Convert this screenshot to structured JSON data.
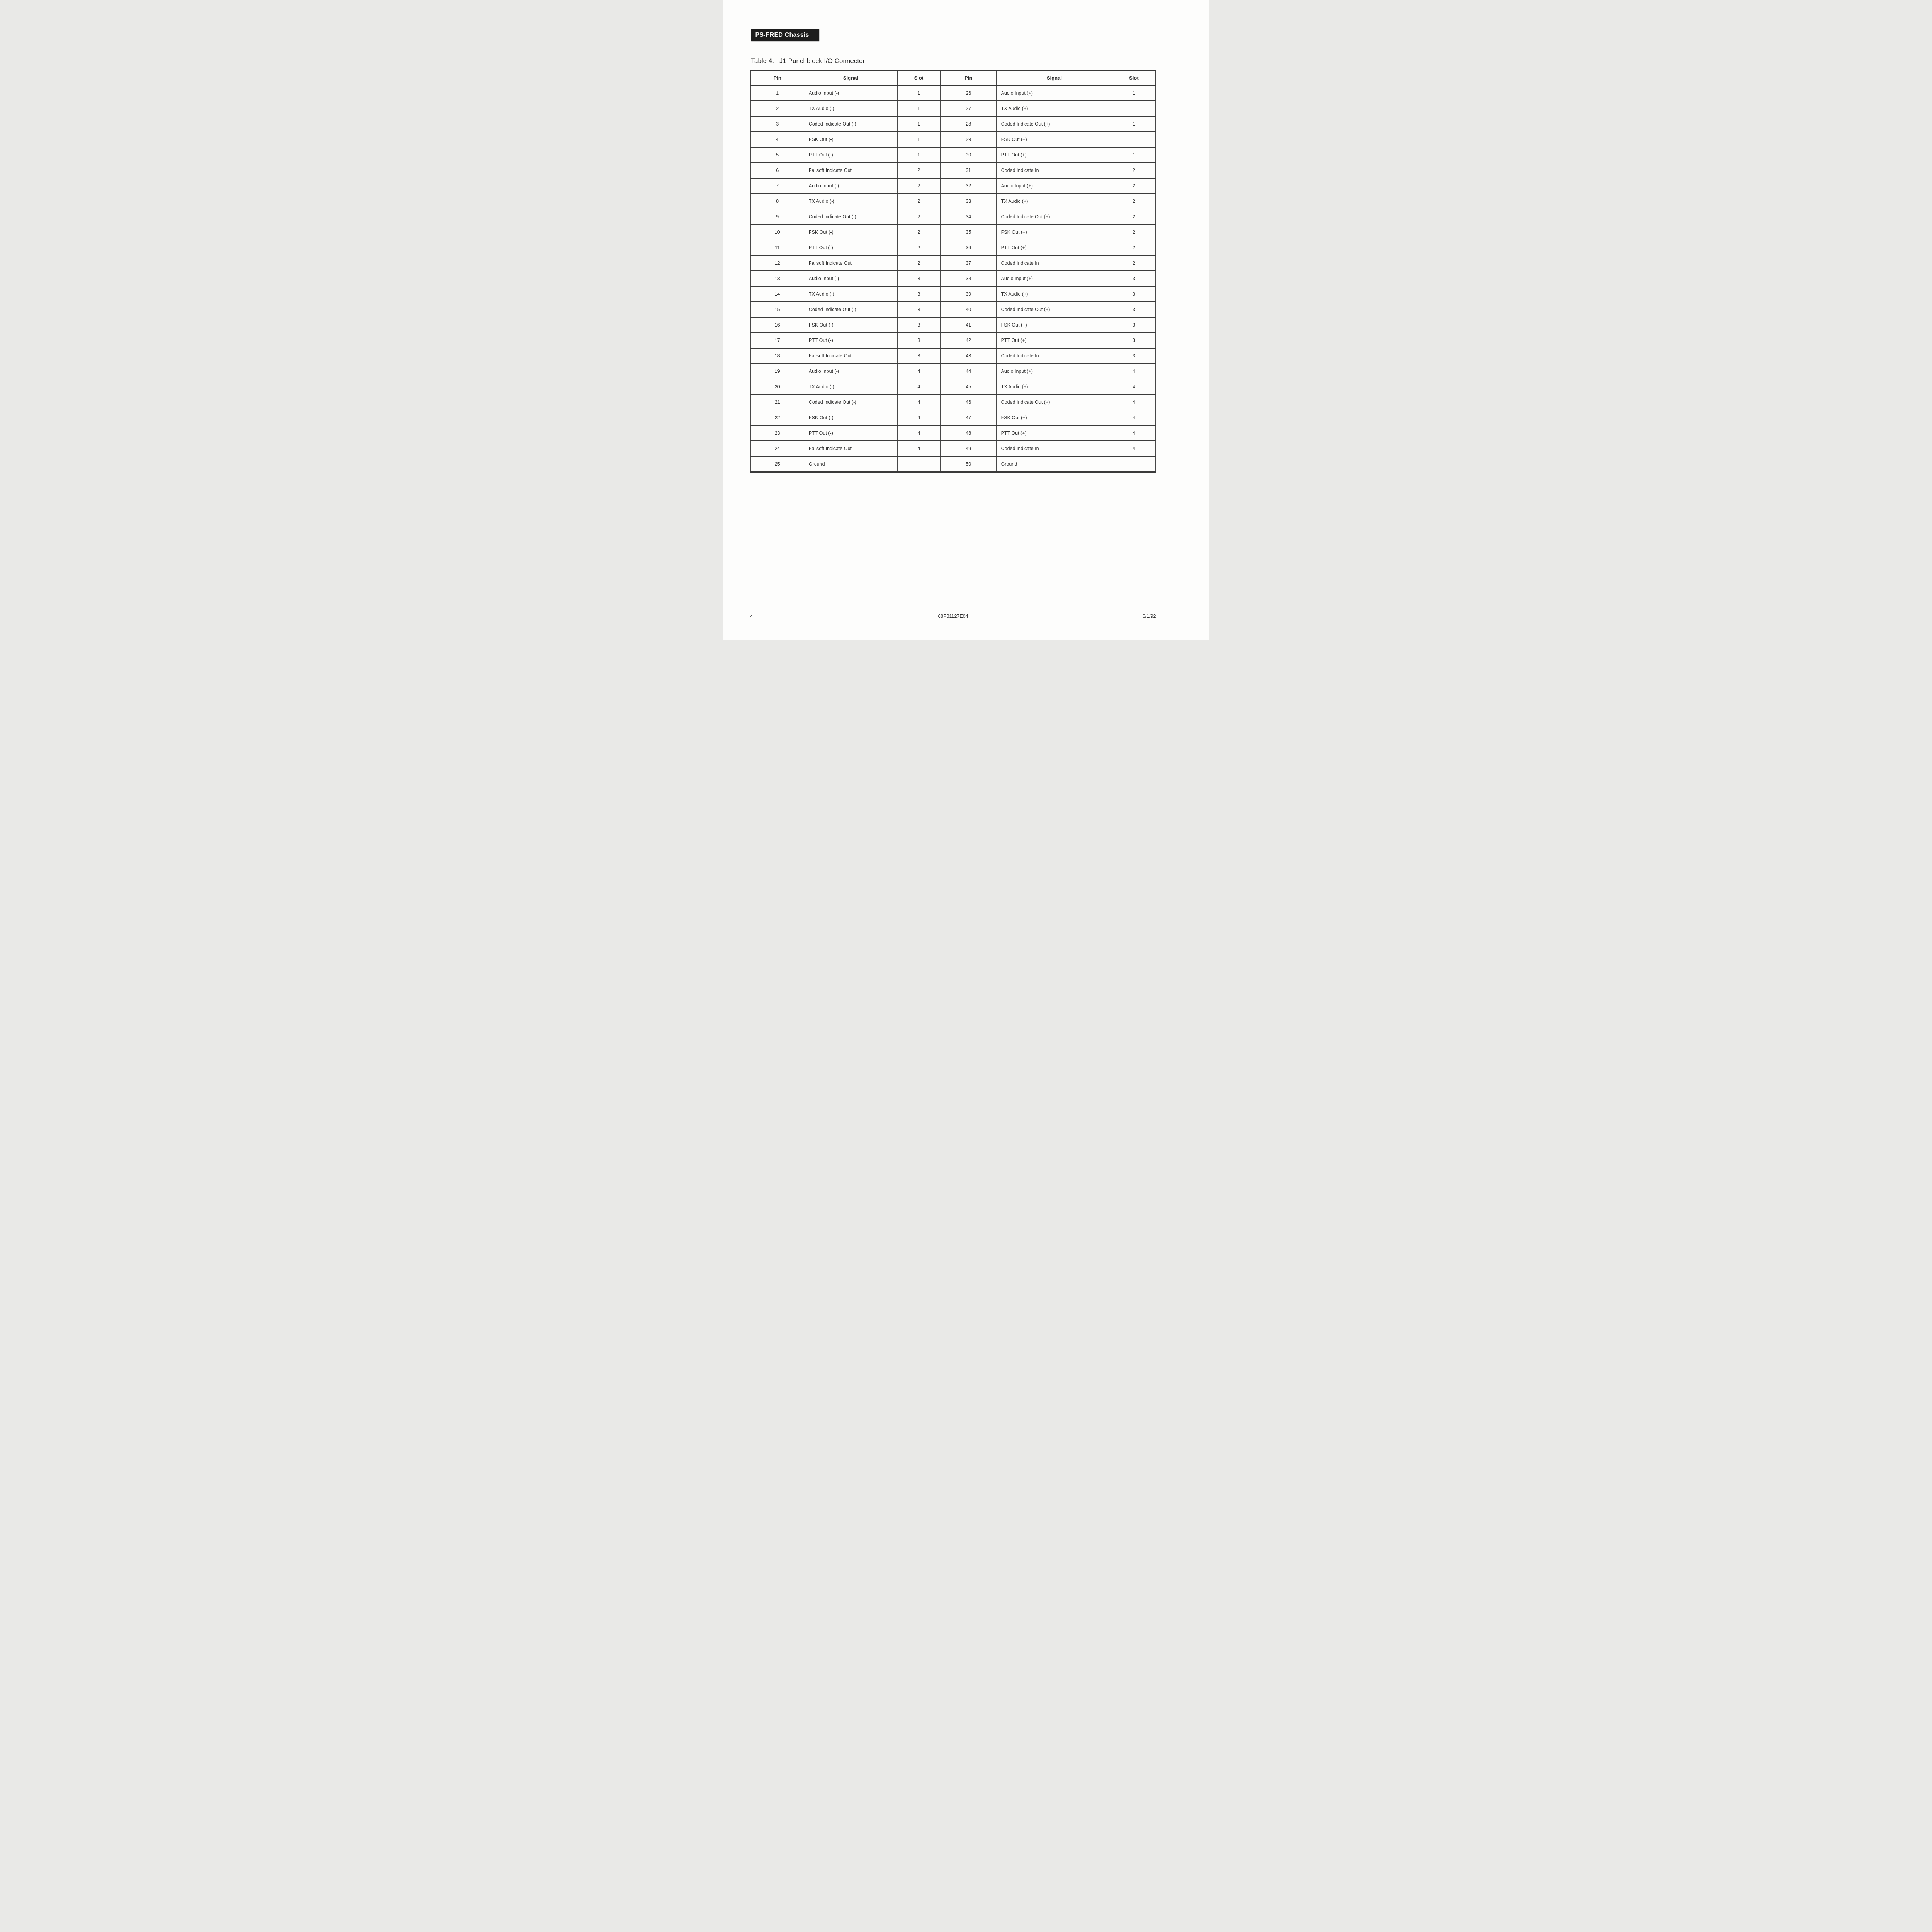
{
  "page": {
    "badge": "PS-FRED Chassis",
    "title_label": "Table 4.",
    "title_text": "J1 Punchblock I/O Connector"
  },
  "table": {
    "columns": [
      "Pin",
      "Signal",
      "Slot",
      "Pin",
      "Signal",
      "Slot"
    ],
    "rows": [
      [
        "1",
        "Audio Input (-)",
        "1",
        "26",
        "Audio Input (+)",
        "1"
      ],
      [
        "2",
        "TX Audio (-)",
        "1",
        "27",
        "TX Audio (+)",
        "1"
      ],
      [
        "3",
        "Coded Indicate Out (-)",
        "1",
        "28",
        "Coded Indicate Out (+)",
        "1"
      ],
      [
        "4",
        "FSK Out (-)",
        "1",
        "29",
        "FSK Out (+)",
        "1"
      ],
      [
        "5",
        "PTT Out (-)",
        "1",
        "30",
        "PTT Out (+)",
        "1"
      ],
      [
        "6",
        "Failsoft Indicate Out",
        "2",
        "31",
        "Coded Indicate In",
        "2"
      ],
      [
        "7",
        "Audio Input (-)",
        "2",
        "32",
        "Audio Input (+)",
        "2"
      ],
      [
        "8",
        "TX Audio (-)",
        "2",
        "33",
        "TX Audio (+)",
        "2"
      ],
      [
        "9",
        "Coded Indicate Out (-)",
        "2",
        "34",
        "Coded Indicate Out (+)",
        "2"
      ],
      [
        "10",
        "FSK Out (-)",
        "2",
        "35",
        "FSK Out (+)",
        "2"
      ],
      [
        "11",
        "PTT Out (-)",
        "2",
        "36",
        "PTT Out (+)",
        "2"
      ],
      [
        "12",
        "Failsoft Indicate Out",
        "2",
        "37",
        "Coded Indicate In",
        "2"
      ],
      [
        "13",
        "Audio Input (-)",
        "3",
        "38",
        "Audio Input (+)",
        "3"
      ],
      [
        "14",
        "TX Audio (-)",
        "3",
        "39",
        "TX Audio (+)",
        "3"
      ],
      [
        "15",
        "Coded Indicate Out (-)",
        "3",
        "40",
        "Coded Indicate Out (+)",
        "3"
      ],
      [
        "16",
        "FSK Out (-)",
        "3",
        "41",
        "FSK Out (+)",
        "3"
      ],
      [
        "17",
        "PTT Out (-)",
        "3",
        "42",
        "PTT Out (+)",
        "3"
      ],
      [
        "18",
        "Failsoft Indicate Out",
        "3",
        "43",
        "Coded Indicate In",
        "3"
      ],
      [
        "19",
        "Audio Input (-)",
        "4",
        "44",
        "Audio Input (+)",
        "4"
      ],
      [
        "20",
        "TX Audio (-)",
        "4",
        "45",
        "TX Audio (+)",
        "4"
      ],
      [
        "21",
        "Coded Indicate Out (-)",
        "4",
        "46",
        "Coded Indicate Out (+)",
        "4"
      ],
      [
        "22",
        "FSK Out (-)",
        "4",
        "47",
        "FSK Out (+)",
        "4"
      ],
      [
        "23",
        "PTT Out (-)",
        "4",
        "48",
        "PTT Out (+)",
        "4"
      ],
      [
        "24",
        "Failsoft Indicate Out",
        "4",
        "49",
        "Coded Indicate In",
        "4"
      ],
      [
        "25",
        "Ground",
        "",
        "50",
        "Ground",
        ""
      ]
    ]
  },
  "footer": {
    "page_number": "4",
    "document_number": "68P81127E04",
    "date": "6/1/92"
  }
}
